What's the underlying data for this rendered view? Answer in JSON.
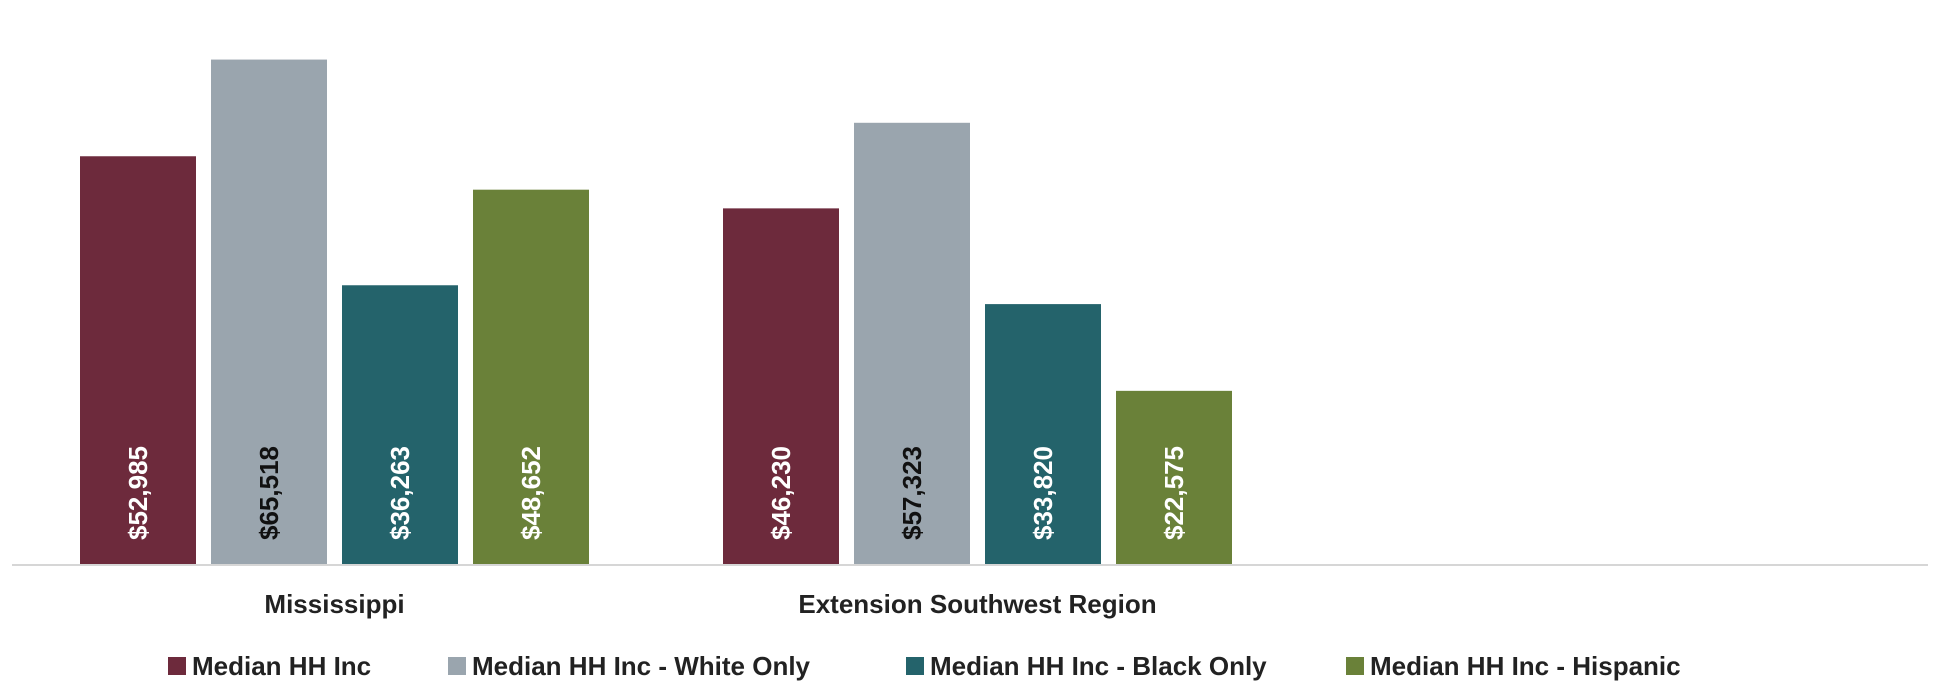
{
  "chart_data": {
    "type": "bar",
    "title": "",
    "xlabel": "",
    "ylabel": "",
    "ylim": [
      0,
      70000
    ],
    "grid": false,
    "legend_position": "bottom",
    "categories": [
      "Mississippi",
      "Extension Southwest Region"
    ],
    "series": [
      {
        "name": "Median HH Inc",
        "color": "#6d2a3c",
        "label_color": "#ffffff",
        "values": [
          52985,
          46230
        ],
        "labels": [
          "$52,985",
          "$46,230"
        ]
      },
      {
        "name": "Median HH Inc - White Only",
        "color": "#9aa5ae",
        "label_color": "#111111",
        "values": [
          65518,
          57323
        ],
        "labels": [
          "$65,518",
          "$57,323"
        ]
      },
      {
        "name": "Median HH Inc - Black Only",
        "color": "#24636b",
        "label_color": "#ffffff",
        "values": [
          36263,
          33820
        ],
        "labels": [
          "$36,263",
          "$33,820"
        ]
      },
      {
        "name": "Median HH Inc - Hispanic",
        "color": "#6a8139",
        "label_color": "#ffffff",
        "values": [
          48652,
          22575
        ],
        "labels": [
          "$48,652",
          "$22,575"
        ]
      }
    ]
  }
}
